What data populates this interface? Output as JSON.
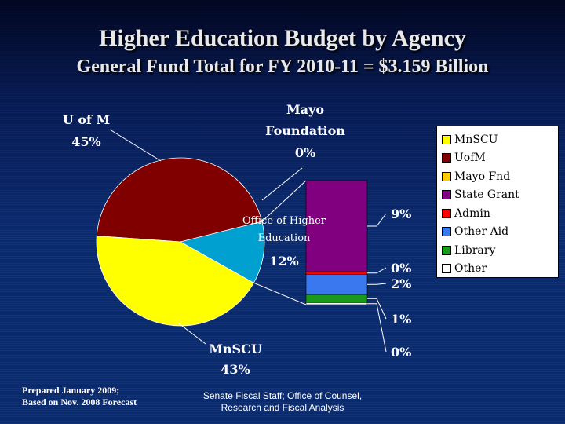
{
  "header": {
    "title": "Higher Education Budget by Agency",
    "subtitle": "General Fund Total for FY 2010-11 = $3.159 Billion"
  },
  "footer": {
    "note_line1": "Prepared January 2009;",
    "note_line2": "Based on Nov. 2008 Forecast",
    "source_line1": "Senate Fiscal Staff;  Office of Counsel,",
    "source_line2": "Research and Fiscal Analysis"
  },
  "chart_data": {
    "type": "pie",
    "title": "Higher Education Budget by Agency",
    "subtitle": "General Fund Total for FY 2010-11 = $3.159 Billion",
    "pie_slices": [
      {
        "label_lines": [
          "U of M"
        ],
        "pct_label": "45%",
        "value": 45,
        "color": "#800000"
      },
      {
        "label_lines": [
          "MnSCU"
        ],
        "pct_label": "43%",
        "value": 43,
        "color": "#ffff00"
      },
      {
        "label_lines": [
          "Office of Higher",
          "Education"
        ],
        "pct_label": "12%",
        "value": 12,
        "color": "#00a0d0"
      },
      {
        "label_lines": [
          "Mayo",
          "Foundation"
        ],
        "pct_label": "0%",
        "value": 0,
        "color": "#ffcc00"
      }
    ],
    "breakout": {
      "of_slice": "Office of Higher Education",
      "segments": [
        {
          "name": "State Grant",
          "pct_label": "9%",
          "value": 9,
          "color": "#800080"
        },
        {
          "name": "Admin",
          "pct_label": "0%",
          "value": 0.25,
          "color": "#ff0000"
        },
        {
          "name": "Other Aid",
          "pct_label": "2%",
          "value": 2,
          "color": "#3a78f0"
        },
        {
          "name": "Library",
          "pct_label": "1%",
          "value": 0.8,
          "color": "#1a9a1a"
        },
        {
          "name": "Other",
          "pct_label": "0%",
          "value": 0.2,
          "color": "#ffffff"
        }
      ]
    },
    "legend": {
      "position": "right",
      "entries": [
        {
          "label": "MnSCU",
          "color": "#ffff00"
        },
        {
          "label": "UofM",
          "color": "#800000"
        },
        {
          "label": "Mayo Fnd",
          "color": "#ffcc00"
        },
        {
          "label": "State Grant",
          "color": "#800080"
        },
        {
          "label": "Admin",
          "color": "#ff0000"
        },
        {
          "label": "Other Aid",
          "color": "#3a78f0"
        },
        {
          "label": "Library",
          "color": "#1a9a1a"
        },
        {
          "label": "Other",
          "color": "#ffffff"
        }
      ]
    }
  }
}
